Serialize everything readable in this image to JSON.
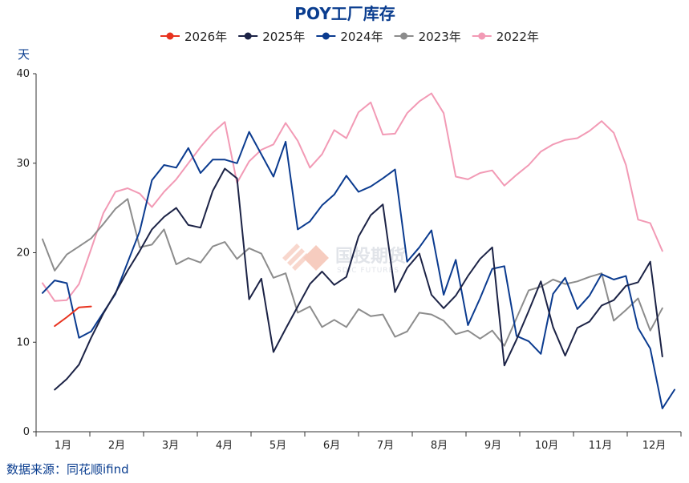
{
  "source": "数据来源：同花顺ifind",
  "watermark": {
    "name": "国投期货",
    "sub": "SDIC FUTURES"
  },
  "chart_data": {
    "type": "line",
    "title": "POY工厂库存",
    "ylabel": "天",
    "xlabel": "",
    "ylim": [
      0,
      40
    ],
    "yticks": [
      0,
      10,
      20,
      30,
      40
    ],
    "xlim": [
      0,
      52
    ],
    "categories": [
      "1月",
      "2月",
      "3月",
      "4月",
      "5月",
      "6月",
      "7月",
      "8月",
      "9月",
      "10月",
      "11月",
      "12月"
    ],
    "grid": false,
    "legend_position": "top",
    "series": [
      {
        "name": "2026年",
        "color": "#e8321e",
        "points": [
          [
            1,
            11.8
          ],
          [
            2,
            12.8
          ],
          [
            3,
            13.9
          ],
          [
            4,
            14.0
          ]
        ]
      },
      {
        "name": "2025年",
        "color": "#1c2346",
        "points": [
          [
            1,
            4.7
          ],
          [
            2,
            5.9
          ],
          [
            3,
            7.5
          ],
          [
            4,
            10.5
          ],
          [
            5,
            13.2
          ],
          [
            6,
            15.5
          ],
          [
            7,
            18.0
          ],
          [
            8,
            20.2
          ],
          [
            9,
            22.6
          ],
          [
            10,
            24.0
          ],
          [
            11,
            25.0
          ],
          [
            12,
            23.1
          ],
          [
            13,
            22.8
          ],
          [
            14,
            26.9
          ],
          [
            15,
            29.4
          ],
          [
            16,
            28.3
          ],
          [
            17,
            14.8
          ],
          [
            18,
            17.1
          ],
          [
            19,
            8.9
          ],
          [
            20,
            11.5
          ],
          [
            21,
            14.0
          ],
          [
            22,
            16.5
          ],
          [
            23,
            17.9
          ],
          [
            24,
            16.4
          ],
          [
            25,
            17.3
          ],
          [
            26,
            21.8
          ],
          [
            27,
            24.2
          ],
          [
            28,
            25.4
          ],
          [
            29,
            15.6
          ],
          [
            30,
            18.3
          ],
          [
            31,
            19.9
          ],
          [
            32,
            15.3
          ],
          [
            33,
            13.8
          ],
          [
            34,
            15.2
          ],
          [
            35,
            17.4
          ],
          [
            36,
            19.3
          ],
          [
            37,
            20.6
          ],
          [
            38,
            7.4
          ],
          [
            39,
            10.3
          ],
          [
            40,
            13.5
          ],
          [
            41,
            16.8
          ],
          [
            42,
            11.7
          ],
          [
            43,
            8.5
          ],
          [
            44,
            11.6
          ],
          [
            45,
            12.3
          ],
          [
            46,
            14.1
          ],
          [
            47,
            14.7
          ],
          [
            48,
            16.3
          ],
          [
            49,
            16.7
          ],
          [
            50,
            19.0
          ],
          [
            51,
            8.4
          ]
        ]
      },
      {
        "name": "2024年",
        "color": "#0b3b8f",
        "points": [
          [
            0,
            15.5
          ],
          [
            1,
            16.9
          ],
          [
            2,
            16.6
          ],
          [
            3,
            10.5
          ],
          [
            4,
            11.2
          ],
          [
            6,
            15.4
          ],
          [
            8,
            22.4
          ],
          [
            9,
            28.1
          ],
          [
            10,
            29.8
          ],
          [
            11,
            29.5
          ],
          [
            12,
            31.7
          ],
          [
            13,
            28.9
          ],
          [
            14,
            30.4
          ],
          [
            15,
            30.4
          ],
          [
            16,
            30.0
          ],
          [
            17,
            33.5
          ],
          [
            18,
            31.0
          ],
          [
            19,
            28.5
          ],
          [
            20,
            32.4
          ],
          [
            21,
            22.6
          ],
          [
            22,
            23.5
          ],
          [
            23,
            25.3
          ],
          [
            24,
            26.5
          ],
          [
            25,
            28.6
          ],
          [
            26,
            26.8
          ],
          [
            27,
            27.4
          ],
          [
            28,
            28.3
          ],
          [
            29,
            29.3
          ],
          [
            30,
            19.0
          ],
          [
            31,
            20.6
          ],
          [
            32,
            22.5
          ],
          [
            33,
            15.3
          ],
          [
            34,
            19.2
          ],
          [
            35,
            11.9
          ],
          [
            36,
            14.9
          ],
          [
            37,
            18.2
          ],
          [
            38,
            18.5
          ],
          [
            39,
            10.7
          ],
          [
            40,
            10.1
          ],
          [
            41,
            8.7
          ],
          [
            42,
            15.4
          ],
          [
            43,
            17.2
          ],
          [
            44,
            13.7
          ],
          [
            45,
            15.2
          ],
          [
            46,
            17.6
          ],
          [
            47,
            17.0
          ],
          [
            48,
            17.4
          ],
          [
            49,
            11.6
          ],
          [
            50,
            9.3
          ],
          [
            51,
            2.6
          ],
          [
            52,
            4.7
          ]
        ]
      },
      {
        "name": "2023年",
        "color": "#8c8c8c",
        "points": [
          [
            0,
            21.5
          ],
          [
            1,
            18.0
          ],
          [
            2,
            19.8
          ],
          [
            3,
            20.7
          ],
          [
            4,
            21.6
          ],
          [
            5,
            23.2
          ],
          [
            6,
            24.9
          ],
          [
            7,
            26.0
          ],
          [
            8,
            20.6
          ],
          [
            9,
            20.9
          ],
          [
            10,
            22.6
          ],
          [
            11,
            18.7
          ],
          [
            12,
            19.4
          ],
          [
            13,
            18.9
          ],
          [
            14,
            20.7
          ],
          [
            15,
            21.2
          ],
          [
            16,
            19.3
          ],
          [
            17,
            20.5
          ],
          [
            18,
            19.9
          ],
          [
            19,
            17.2
          ],
          [
            20,
            17.7
          ],
          [
            21,
            13.3
          ],
          [
            22,
            14.0
          ],
          [
            23,
            11.7
          ],
          [
            24,
            12.5
          ],
          [
            25,
            11.7
          ],
          [
            26,
            13.7
          ],
          [
            27,
            12.9
          ],
          [
            28,
            13.1
          ],
          [
            29,
            10.6
          ],
          [
            30,
            11.2
          ],
          [
            31,
            13.3
          ],
          [
            32,
            13.1
          ],
          [
            33,
            12.4
          ],
          [
            34,
            10.9
          ],
          [
            35,
            11.3
          ],
          [
            36,
            10.4
          ],
          [
            37,
            11.3
          ],
          [
            38,
            9.6
          ],
          [
            39,
            12.7
          ],
          [
            40,
            15.8
          ],
          [
            41,
            16.2
          ],
          [
            42,
            17.0
          ],
          [
            43,
            16.5
          ],
          [
            44,
            16.8
          ],
          [
            45,
            17.3
          ],
          [
            46,
            17.7
          ],
          [
            47,
            12.4
          ],
          [
            48,
            13.6
          ],
          [
            49,
            14.9
          ],
          [
            50,
            11.3
          ],
          [
            51,
            13.8
          ]
        ]
      },
      {
        "name": "2022年",
        "color": "#f29ab5",
        "points": [
          [
            0,
            16.6
          ],
          [
            1,
            14.6
          ],
          [
            2,
            14.7
          ],
          [
            3,
            16.5
          ],
          [
            4,
            20.4
          ],
          [
            5,
            24.4
          ],
          [
            6,
            26.8
          ],
          [
            7,
            27.2
          ],
          [
            8,
            26.6
          ],
          [
            9,
            25.1
          ],
          [
            10,
            26.8
          ],
          [
            11,
            28.2
          ],
          [
            12,
            30.0
          ],
          [
            13,
            31.8
          ],
          [
            14,
            33.4
          ],
          [
            15,
            34.6
          ],
          [
            16,
            27.8
          ],
          [
            17,
            30.2
          ],
          [
            18,
            31.5
          ],
          [
            19,
            32.1
          ],
          [
            20,
            34.5
          ],
          [
            21,
            32.5
          ],
          [
            22,
            29.5
          ],
          [
            23,
            31.0
          ],
          [
            24,
            33.7
          ],
          [
            25,
            32.8
          ],
          [
            26,
            35.7
          ],
          [
            27,
            36.8
          ],
          [
            28,
            33.2
          ],
          [
            29,
            33.3
          ],
          [
            30,
            35.6
          ],
          [
            31,
            36.9
          ],
          [
            32,
            37.8
          ],
          [
            33,
            35.6
          ],
          [
            34,
            28.5
          ],
          [
            35,
            28.2
          ],
          [
            36,
            28.9
          ],
          [
            37,
            29.2
          ],
          [
            38,
            27.5
          ],
          [
            39,
            28.7
          ],
          [
            40,
            29.8
          ],
          [
            41,
            31.3
          ],
          [
            42,
            32.1
          ],
          [
            43,
            32.6
          ],
          [
            44,
            32.8
          ],
          [
            45,
            33.6
          ],
          [
            46,
            34.7
          ],
          [
            47,
            33.4
          ],
          [
            48,
            29.8
          ],
          [
            49,
            23.7
          ],
          [
            50,
            23.3
          ],
          [
            51,
            20.2
          ]
        ]
      }
    ]
  }
}
